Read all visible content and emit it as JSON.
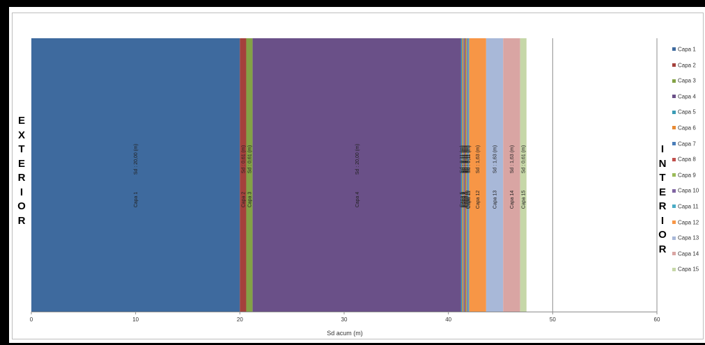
{
  "side_labels": {
    "left": [
      "E",
      "X",
      "T",
      "E",
      "R",
      "I",
      "O",
      "R"
    ],
    "right": [
      "I",
      "N",
      "T",
      "E",
      "R",
      "I",
      "O",
      "R"
    ]
  },
  "chart_data": {
    "type": "bar",
    "orientation": "horizontal-stacked",
    "xlabel": "Sd acum (m)",
    "xlim": [
      0,
      60
    ],
    "xticks": [
      0,
      10,
      20,
      30,
      40,
      50,
      60
    ],
    "grid": "vertical at 50 and 60",
    "legend_position": "right",
    "series": [
      {
        "name": "Capa 1",
        "value": 20.0,
        "label": "Sd : 20,00 (m)",
        "color": "#3E6A9E"
      },
      {
        "name": "Capa 2",
        "value": 0.61,
        "label": "Sd : 0,61 (m)",
        "color": "#A4413C"
      },
      {
        "name": "Capa 3",
        "value": 0.61,
        "label": "Sd : 0,61 (m)",
        "color": "#83A245"
      },
      {
        "name": "Capa 4",
        "value": 20.0,
        "label": "Sd : 20,00 (m)",
        "color": "#6A5088"
      },
      {
        "name": "Capa 5",
        "value": 0.11,
        "label": "Sd : 0,11 (m)",
        "color": "#3A9BB5"
      },
      {
        "name": "Capa 6",
        "value": 0.11,
        "label": "Sd : 0,11 (m)",
        "color": "#E88A33"
      },
      {
        "name": "Capa 7",
        "value": 0.11,
        "label": "Sd : 0,11 (m)",
        "color": "#4A7DB8"
      },
      {
        "name": "Capa 8",
        "value": 0.11,
        "label": "Sd : 0,11 (m)",
        "color": "#C0504D"
      },
      {
        "name": "Capa 9",
        "value": 0.11,
        "label": "Sd : 0,11 (m)",
        "color": "#9BBB59"
      },
      {
        "name": "Capa 10",
        "value": 0.11,
        "label": "Sd : 0,11 (m)",
        "color": "#8064A2"
      },
      {
        "name": "Capa 11",
        "value": 0.11,
        "label": "Sd : 0,11 (m)",
        "color": "#4BACC6"
      },
      {
        "name": "Capa 12",
        "value": 1.63,
        "label": "Sd : 1,63 (m)",
        "color": "#F79646"
      },
      {
        "name": "Capa 13",
        "value": 1.63,
        "label": "Sd : 1,63 (m)",
        "color": "#A8B8D8"
      },
      {
        "name": "Capa 14",
        "value": 1.63,
        "label": "Sd : 1,63 (m)",
        "color": "#D9A5A3"
      },
      {
        "name": "Capa 15",
        "value": 0.61,
        "label": "Sd : 0,61 (m)",
        "color": "#C6D7A8"
      }
    ]
  }
}
